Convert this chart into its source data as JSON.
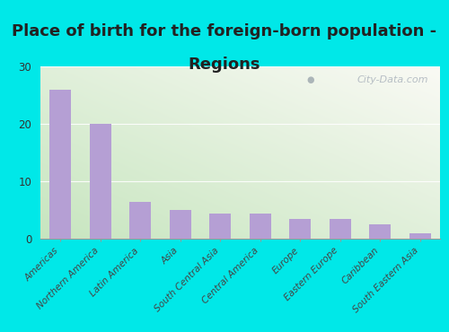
{
  "title_line1": "Place of birth for the foreign-born population -",
  "title_line2": "Regions",
  "categories": [
    "Americas",
    "Northern America",
    "Latin America",
    "Asia",
    "South Central Asia",
    "Central America",
    "Europe",
    "Eastern Europe",
    "Caribbean",
    "South Eastern Asia"
  ],
  "values": [
    26.0,
    20.0,
    6.5,
    5.0,
    4.5,
    4.5,
    3.5,
    3.5,
    2.5,
    1.0
  ],
  "bar_color": "#b59fd4",
  "background_outer": "#00e8e8",
  "ylim": [
    0,
    30
  ],
  "yticks": [
    0,
    10,
    20,
    30
  ],
  "watermark": "City-Data.com",
  "title_fontsize": 13,
  "tick_label_fontsize": 7.5,
  "title_color": "#222222"
}
